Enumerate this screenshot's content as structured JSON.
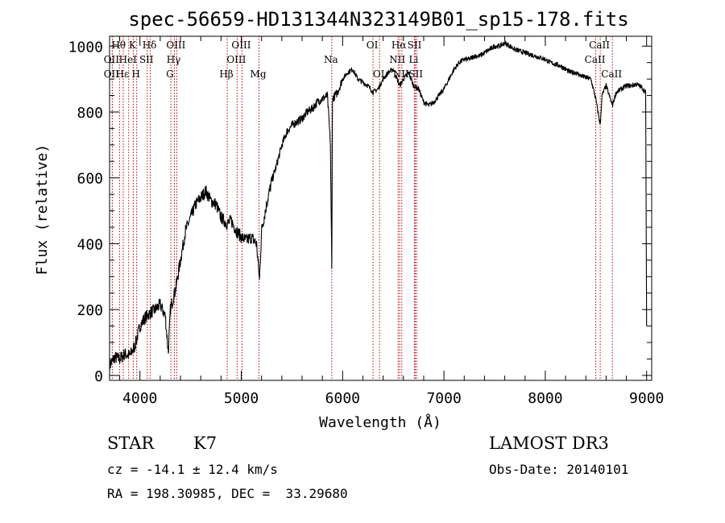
{
  "chart_data": {
    "type": "line",
    "title": "spec-56659-HD131344N323149B01_sp15-178.fits",
    "xlabel": "Wavelength (Å)",
    "ylabel": "Flux (relative)",
    "xlim": [
      3700,
      9050
    ],
    "ylim": [
      -15,
      1030
    ],
    "x_ticks": [
      4000,
      5000,
      6000,
      7000,
      8000,
      9000
    ],
    "x_tick_labels": [
      "4000",
      "5000",
      "6000",
      "7000",
      "8000",
      "9000"
    ],
    "y_ticks": [
      0,
      200,
      400,
      600,
      800,
      1000
    ],
    "y_tick_labels": [
      "0",
      "200",
      "400",
      "600",
      "800",
      "1000"
    ],
    "series": [
      {
        "name": "flux",
        "color": "#000000",
        "x": [
          3700,
          3750,
          3800,
          3850,
          3900,
          3950,
          4000,
          4050,
          4100,
          4150,
          4200,
          4250,
          4280,
          4300,
          4350,
          4400,
          4450,
          4500,
          4550,
          4600,
          4650,
          4700,
          4750,
          4800,
          4860,
          4900,
          4950,
          5000,
          5050,
          5100,
          5150,
          5180,
          5200,
          5250,
          5300,
          5350,
          5400,
          5450,
          5500,
          5550,
          5600,
          5650,
          5700,
          5750,
          5800,
          5850,
          5880,
          5893,
          5900,
          5950,
          6000,
          6050,
          6100,
          6150,
          6200,
          6250,
          6300,
          6350,
          6400,
          6450,
          6500,
          6563,
          6600,
          6650,
          6700,
          6750,
          6800,
          6850,
          6900,
          6950,
          7000,
          7050,
          7100,
          7150,
          7200,
          7250,
          7300,
          7350,
          7400,
          7450,
          7500,
          7550,
          7600,
          7650,
          7700,
          7750,
          7800,
          7850,
          7900,
          7950,
          8000,
          8050,
          8100,
          8150,
          8200,
          8250,
          8300,
          8350,
          8400,
          8450,
          8498,
          8542,
          8560,
          8600,
          8662,
          8700,
          8750,
          8800,
          8850,
          8900,
          8950,
          8990,
          9000
        ],
        "y": [
          30,
          55,
          50,
          65,
          60,
          90,
          150,
          175,
          190,
          200,
          215,
          180,
          70,
          200,
          260,
          350,
          440,
          480,
          520,
          540,
          560,
          530,
          520,
          480,
          460,
          470,
          440,
          420,
          410,
          420,
          400,
          290,
          440,
          520,
          590,
          640,
          700,
          740,
          760,
          770,
          780,
          800,
          810,
          830,
          840,
          850,
          700,
          320,
          840,
          860,
          900,
          920,
          930,
          900,
          890,
          880,
          860,
          870,
          900,
          920,
          930,
          880,
          900,
          920,
          880,
          870,
          830,
          820,
          830,
          850,
          870,
          900,
          930,
          950,
          960,
          960,
          970,
          970,
          980,
          990,
          1000,
          1000,
          1010,
          1000,
          990,
          985,
          980,
          975,
          970,
          965,
          960,
          950,
          945,
          940,
          930,
          920,
          920,
          910,
          905,
          900,
          840,
          760,
          850,
          880,
          820,
          860,
          870,
          880,
          880,
          885,
          875,
          860,
          150
        ]
      }
    ],
    "lines": [
      {
        "label": "Hθ",
        "x": 3798,
        "row": 0
      },
      {
        "label": "OII",
        "x": 3727,
        "row": 1
      },
      {
        "label": "OII",
        "x": 3727,
        "row": 2
      },
      {
        "label": "Hε",
        "x": 3835,
        "row": 2
      },
      {
        "label": "HeI",
        "x": 3889,
        "row": 1
      },
      {
        "label": "K",
        "x": 3934,
        "row": 0
      },
      {
        "label": "SII",
        "x": 4072,
        "row": 1
      },
      {
        "label": "H",
        "x": 3968,
        "row": 2
      },
      {
        "label": "Hδ",
        "x": 4102,
        "row": 0
      },
      {
        "label": "OIII",
        "x": 4363,
        "row": 0
      },
      {
        "label": "Hγ",
        "x": 4340,
        "row": 1
      },
      {
        "label": "G",
        "x": 4305,
        "row": 2
      },
      {
        "label": "Hβ",
        "x": 4861,
        "row": 2
      },
      {
        "label": "OIII",
        "x": 5007,
        "row": 0
      },
      {
        "label": "OIII",
        "x": 4959,
        "row": 1
      },
      {
        "label": "Mg",
        "x": 5175,
        "row": 2
      },
      {
        "label": "Na",
        "x": 5893,
        "row": 1
      },
      {
        "label": "OI",
        "x": 6300,
        "row": 0
      },
      {
        "label": "OI",
        "x": 6364,
        "row": 2
      },
      {
        "label": "Hα",
        "x": 6563,
        "row": 0
      },
      {
        "label": "NII",
        "x": 6548,
        "row": 1
      },
      {
        "label": "NII",
        "x": 6584,
        "row": 2
      },
      {
        "label": "SII",
        "x": 6717,
        "row": 0
      },
      {
        "label": "Li",
        "x": 6708,
        "row": 1
      },
      {
        "label": "SII",
        "x": 6731,
        "row": 2
      },
      {
        "label": "CaII",
        "x": 8542,
        "row": 0
      },
      {
        "label": "CaII",
        "x": 8498,
        "row": 1
      },
      {
        "label": "CaII",
        "x": 8662,
        "row": 2
      }
    ],
    "line_color": "#c00000"
  },
  "info": {
    "object_class": "STAR",
    "subclass": "K7",
    "survey": "LAMOST DR3",
    "cz": "cz = -14.1 ± 12.4 km/s",
    "obs_date": "Obs-Date: 20140101",
    "coords": "RA = 198.30985, DEC =  33.29680"
  }
}
